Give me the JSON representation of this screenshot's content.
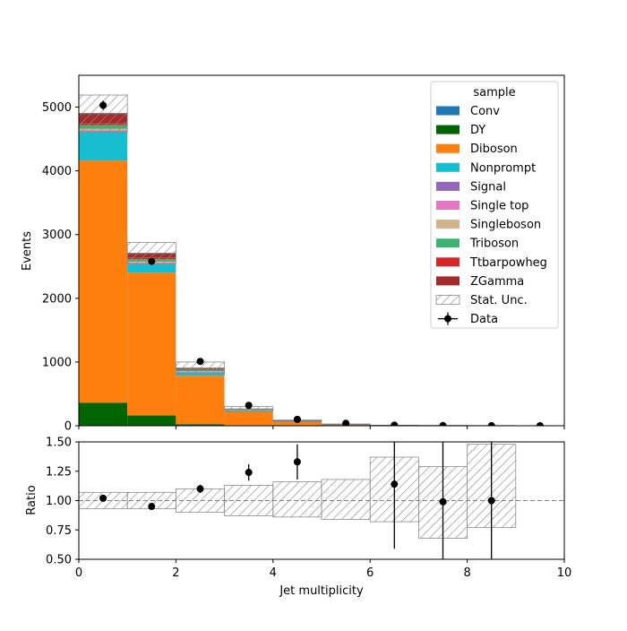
{
  "chart_data": [
    {
      "type": "bar",
      "stacked": true,
      "ylabel": "Events",
      "xlim": [
        0,
        10
      ],
      "ylim": [
        0,
        5500
      ],
      "yticks": [
        0,
        1000,
        2000,
        3000,
        4000,
        5000
      ],
      "bins": [
        0,
        1,
        2,
        3,
        4,
        5,
        6,
        7,
        8,
        9
      ],
      "legend": {
        "title": "sample",
        "placement": "top-right",
        "stat_label": "Stat. Unc.",
        "data_label": "Data"
      },
      "series": [
        {
          "name": "Conv",
          "color": "#1f77b4",
          "values": [
            2,
            1,
            0,
            0,
            0,
            0,
            0,
            0,
            0,
            0
          ]
        },
        {
          "name": "DY",
          "color": "#006400",
          "values": [
            360,
            160,
            25,
            8,
            3,
            1,
            0,
            0,
            0,
            0
          ]
        },
        {
          "name": "Diboson",
          "color": "#ff7f0e",
          "values": [
            3800,
            2240,
            760,
            210,
            55,
            15,
            5,
            2,
            1,
            0
          ]
        },
        {
          "name": "Nonprompt",
          "color": "#17becf",
          "values": [
            450,
            140,
            55,
            20,
            8,
            3,
            1,
            0,
            0,
            0
          ]
        },
        {
          "name": "Signal",
          "color": "#9467bd",
          "values": [
            8,
            5,
            3,
            1,
            1,
            0,
            0,
            0,
            0,
            0
          ]
        },
        {
          "name": "Single top",
          "color": "#e377c2",
          "values": [
            15,
            15,
            10,
            5,
            2,
            1,
            0,
            0,
            0,
            0
          ]
        },
        {
          "name": "Singleboson",
          "color": "#d2b48c",
          "values": [
            25,
            15,
            5,
            2,
            1,
            0,
            0,
            0,
            0,
            0
          ]
        },
        {
          "name": "Triboson",
          "color": "#3cb371",
          "values": [
            60,
            40,
            20,
            8,
            3,
            1,
            0,
            0,
            0,
            0
          ]
        },
        {
          "name": "Ttbarpowheg",
          "color": "#d62728",
          "values": [
            25,
            25,
            12,
            5,
            2,
            1,
            0,
            0,
            0,
            0
          ]
        },
        {
          "name": "ZGamma",
          "color": "#a52a2a",
          "values": [
            155,
            65,
            15,
            4,
            1,
            0,
            0,
            0,
            0,
            0
          ]
        }
      ],
      "stat_unc": [
        290,
        170,
        95,
        38,
        15,
        6,
        3,
        1.5,
        1,
        0
      ],
      "data": {
        "x": [
          0.5,
          1.5,
          2.5,
          3.5,
          4.5,
          5.5,
          6.5,
          7.5,
          8.5,
          9.5
        ],
        "y": [
          5030,
          2580,
          1010,
          320,
          100,
          38,
          10,
          3,
          1,
          0
        ]
      }
    },
    {
      "type": "scatter",
      "xlabel": "Jet multiplicity",
      "ylabel": "Ratio",
      "xlim": [
        0,
        10
      ],
      "ylim": [
        0.5,
        1.5
      ],
      "xticks": [
        0,
        2,
        4,
        6,
        8,
        10
      ],
      "yticks": [
        0.5,
        0.75,
        1.0,
        1.25,
        1.5
      ],
      "ytick_labels": [
        "0.50",
        "0.75",
        "1.00",
        "1.25",
        "1.50"
      ],
      "reference_line": 1.0,
      "unc_band": {
        "lo": [
          0.93,
          0.93,
          0.9,
          0.87,
          0.86,
          0.84,
          0.82,
          0.68,
          0.77
        ],
        "hi": [
          1.07,
          1.07,
          1.1,
          1.13,
          1.16,
          1.18,
          1.37,
          1.29,
          1.48
        ]
      },
      "points": {
        "x": [
          0.5,
          1.5,
          2.5,
          3.5,
          4.5,
          6.5,
          7.5,
          8.5
        ],
        "y": [
          1.02,
          0.95,
          1.1,
          1.24,
          1.33,
          1.14,
          0.99,
          1.0
        ],
        "err": [
          0.015,
          0.02,
          0.035,
          0.07,
          0.15,
          0.55,
          1.0,
          1.0
        ]
      }
    }
  ]
}
